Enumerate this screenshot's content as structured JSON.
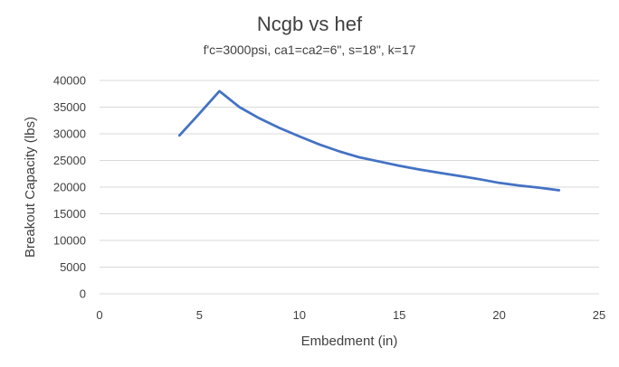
{
  "chart_data": {
    "type": "line",
    "title": "Ncgb vs hef",
    "subtitle": "f'c=3000psi, ca1=ca2=6\", s=18\", k=17",
    "xlabel": "Embedment (in)",
    "ylabel": "Breakout Capacity (lbs)",
    "xlim": [
      0,
      25
    ],
    "ylim": [
      0,
      40000
    ],
    "x_ticks": [
      0,
      5,
      10,
      15,
      20,
      25
    ],
    "y_ticks": [
      0,
      5000,
      10000,
      15000,
      20000,
      25000,
      30000,
      35000,
      40000
    ],
    "grid": "horizontal",
    "series_color": "#4472c4",
    "series": [
      {
        "x": [
          4,
          5,
          6,
          7,
          8,
          9,
          10,
          11,
          12,
          13,
          14,
          15,
          16,
          17,
          18,
          19,
          20,
          21,
          22,
          23
        ],
        "values": [
          29700,
          33800,
          38000,
          35000,
          32900,
          31100,
          29500,
          28000,
          26700,
          25600,
          24800,
          24000,
          23300,
          22700,
          22100,
          21500,
          20800,
          20300,
          19900,
          19400
        ]
      }
    ]
  }
}
